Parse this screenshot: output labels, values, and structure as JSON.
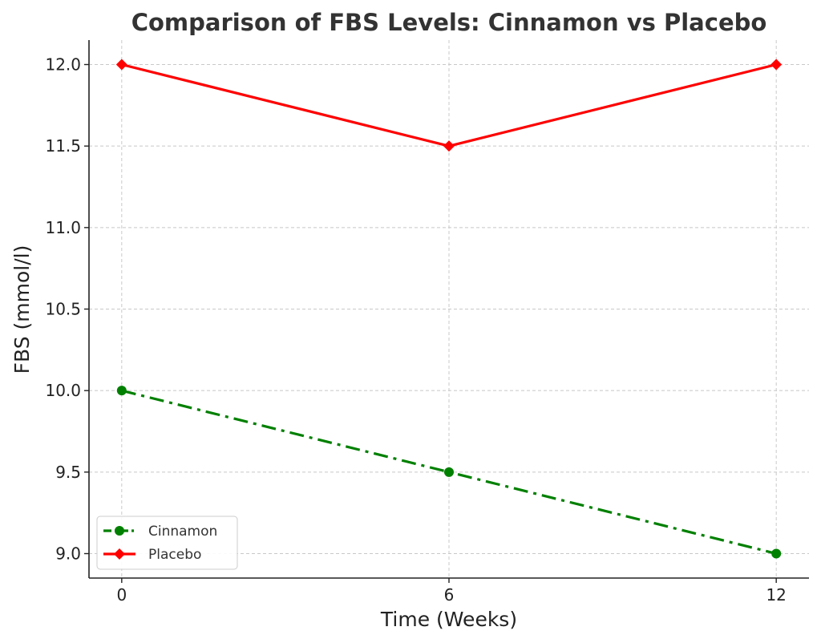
{
  "chart_data": {
    "type": "line",
    "title": "Comparison of FBS Levels: Cinnamon vs Placebo",
    "xlabel": "Time (Weeks)",
    "ylabel": "FBS (mmol/l)",
    "x": [
      0,
      6,
      12
    ],
    "x_tick_labels": [
      "0",
      "6",
      "12"
    ],
    "y_tick_values": [
      9.0,
      9.5,
      10.0,
      10.5,
      11.0,
      11.5,
      12.0
    ],
    "y_tick_labels": [
      "9.0",
      "9.5",
      "10.0",
      "10.5",
      "11.0",
      "11.5",
      "12.0"
    ],
    "xlim": [
      -0.6,
      12.6
    ],
    "ylim": [
      8.85,
      12.15
    ],
    "grid": true,
    "legend_position": "lower-left",
    "series": [
      {
        "name": "Cinnamon",
        "values": [
          10.0,
          9.5,
          9.0
        ],
        "color": "#008000",
        "line_style": "dash-dot",
        "marker": "circle"
      },
      {
        "name": "Placebo",
        "values": [
          12.0,
          11.5,
          12.0
        ],
        "color": "#ff0000",
        "line_style": "solid",
        "marker": "diamond"
      }
    ]
  }
}
